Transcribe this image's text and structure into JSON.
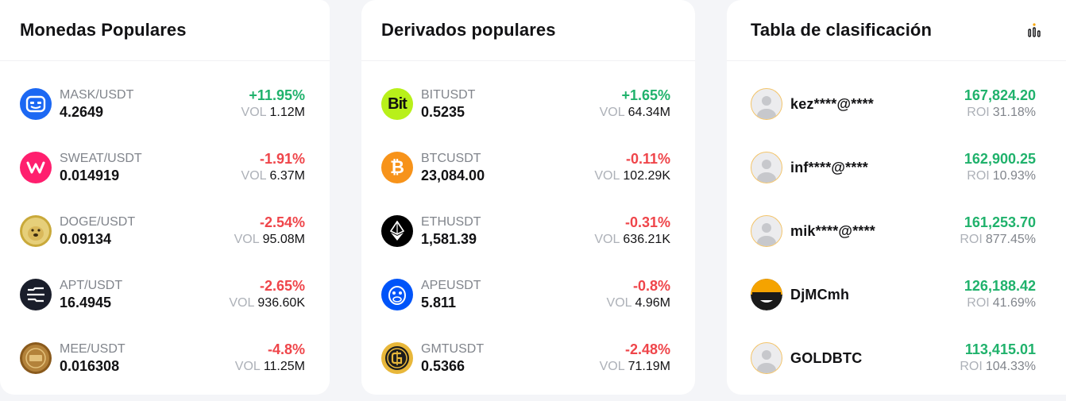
{
  "popular": {
    "title": "Monedas Populares",
    "vol_label": "VOL",
    "items": [
      {
        "pair": "MASK/USDT",
        "price": "4.2649",
        "change": "+11.95%",
        "dir": "up",
        "vol": "1.12M",
        "icon": "mask-icon",
        "color": "#1c68f3"
      },
      {
        "pair": "SWEAT/USDT",
        "price": "0.014919",
        "change": "-1.91%",
        "dir": "down",
        "vol": "6.37M",
        "icon": "sweat-icon",
        "color": "#ff1f6e"
      },
      {
        "pair": "DOGE/USDT",
        "price": "0.09134",
        "change": "-2.54%",
        "dir": "down",
        "vol": "95.08M",
        "icon": "doge-icon",
        "color": "#c9a93a"
      },
      {
        "pair": "APT/USDT",
        "price": "16.4945",
        "change": "-2.65%",
        "dir": "down",
        "vol": "936.60K",
        "icon": "apt-icon",
        "color": "#1a1e2b"
      },
      {
        "pair": "MEE/USDT",
        "price": "0.016308",
        "change": "-4.8%",
        "dir": "down",
        "vol": "11.25M",
        "icon": "mee-icon",
        "color": "#8a5a1c"
      }
    ]
  },
  "derivatives": {
    "title": "Derivados populares",
    "vol_label": "VOL",
    "items": [
      {
        "pair": "BITUSDT",
        "price": "0.5235",
        "change": "+1.65%",
        "dir": "up",
        "vol": "64.34M",
        "icon": "bit-icon",
        "icon_text": "Bit",
        "color": "#b8f01a"
      },
      {
        "pair": "BTCUSDT",
        "price": "23,084.00",
        "change": "-0.11%",
        "dir": "down",
        "vol": "102.29K",
        "icon": "bitcoin-icon",
        "icon_text": "₿",
        "color": "#f7931a"
      },
      {
        "pair": "ETHUSDT",
        "price": "1,581.39",
        "change": "-0.31%",
        "dir": "down",
        "vol": "636.21K",
        "icon": "ethereum-icon",
        "icon_text": "",
        "color": "#000000"
      },
      {
        "pair": "APEUSDT",
        "price": "5.811",
        "change": "-0.8%",
        "dir": "down",
        "vol": "4.96M",
        "icon": "ape-icon",
        "icon_text": "",
        "color": "#0054f9"
      },
      {
        "pair": "GMTUSDT",
        "price": "0.5366",
        "change": "-2.48%",
        "dir": "down",
        "vol": "71.19M",
        "icon": "gmt-icon",
        "icon_text": "",
        "color": "#e8b73a"
      }
    ]
  },
  "leaderboard": {
    "title": "Tabla de clasificación",
    "roi_label": "ROI",
    "items": [
      {
        "name": "kez****@****",
        "pnl": "167,824.20",
        "roi": "31.18%",
        "avatar": "default-avatar-icon"
      },
      {
        "name": "inf****@****",
        "pnl": "162,900.25",
        "roi": "10.93%",
        "avatar": "default-avatar-icon"
      },
      {
        "name": "mik****@****",
        "pnl": "161,253.70",
        "roi": "877.45%",
        "avatar": "default-avatar-icon"
      },
      {
        "name": "DjMCmh",
        "pnl": "126,188.42",
        "roi": "41.69%",
        "avatar": "character-avatar-icon"
      },
      {
        "name": "GOLDBTC",
        "pnl": "113,415.01",
        "roi": "104.33%",
        "avatar": "default-avatar-icon"
      }
    ]
  },
  "colors": {
    "up": "#20b26c",
    "down": "#ef454a",
    "avatar_border": "#f3c46a"
  }
}
